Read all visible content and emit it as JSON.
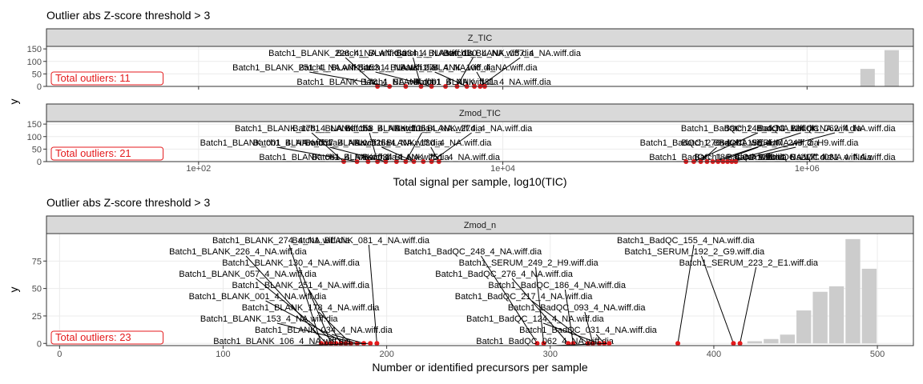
{
  "colors": {
    "panel_bg": "#ffffff",
    "grid": "#ebebeb",
    "strip_bg": "#d9d9d9",
    "bar": "#cccccc",
    "outlier": "#e41a1c",
    "label_line": "#000000",
    "border": "#333333"
  },
  "chart_data": [
    {
      "type": "bar",
      "title": "Outlier abs Z-score threshold > 3",
      "xlabel": "Total signal per sample, log10(TIC)",
      "ylabel": "y",
      "x_scale": "log10",
      "xlim": [
        10,
        5000000
      ],
      "x_ticks": [
        "1e+02",
        "1e+04",
        "1e+06"
      ],
      "x_tick_values": [
        100,
        10000,
        1000000
      ],
      "panels": [
        {
          "strip": "Z_TIC",
          "ylim": [
            0,
            160
          ],
          "y_ticks": [
            0,
            50,
            100,
            150
          ],
          "total_outliers_label": "Total outliers: 11",
          "bars": [
            {
              "x": 2500000,
              "value": 70
            },
            {
              "x": 3600000,
              "value": 145
            }
          ],
          "outliers": [
            {
              "x": 1500,
              "label": "Batch1_BLANK_226_4_NA.wiff.dia"
            },
            {
              "x": 1800,
              "label": "Batch1_BLANK_251_4_NA.wiff.dia"
            },
            {
              "x": 2300,
              "label": "Batch1_BLANK_178_4_NA.wiff.dia"
            },
            {
              "x": 2900,
              "label": "Batch1_BLANK_034_4_NA.wiff.dia"
            },
            {
              "x": 3400,
              "label": "Batch1_BLANK_153_4_NA.wiff.dia"
            },
            {
              "x": 4200,
              "label": "Batch1_BLANK_001_4_NA.wiff.dia"
            },
            {
              "x": 5000,
              "label": "Batch1_BLANK_130_4_NA.wiff.dia"
            },
            {
              "x": 5800,
              "label": "Batch1_BLANK_274_4_NA.wiff.dia"
            },
            {
              "x": 6500,
              "label": "Batch1_BLANK_081_4_NA.wiff.dia"
            },
            {
              "x": 7100,
              "label": "Batch1_BLANK_057_4_NA.wiff.dia"
            },
            {
              "x": 7600,
              "label": "Batch1_BLANK_106_4_NA.wiff.dia"
            }
          ]
        },
        {
          "strip": "Zmod_TIC",
          "ylim": [
            0,
            160
          ],
          "y_ticks": [
            0,
            50,
            100,
            150
          ],
          "total_outliers_label": "Total outliers: 21",
          "bars": [],
          "outliers": [
            {
              "x": 900,
              "label": "Batch1_BLANK_178_4_NA.wiff.dia"
            },
            {
              "x": 1100,
              "label": "Batch1_BLANK_001_4_NA.wiff.dia"
            },
            {
              "x": 1300,
              "label": "Batch1_BLANK_081_4_NA.wiff.dia"
            },
            {
              "x": 1500,
              "label": "Batch1_BLANK_153_4_NA.wiff.dia"
            },
            {
              "x": 1700,
              "label": "Batch1_BLANK_057_4_NA.wiff.dia"
            },
            {
              "x": 2000,
              "label": "Batch1_BLANK_034_4_NA.wiff.dia"
            },
            {
              "x": 2300,
              "label": "Batch1_BLANK_106_4_NA.wiff.dia"
            },
            {
              "x": 2600,
              "label": "Batch1_BLANK_226_4_NA.wiff.dia"
            },
            {
              "x": 3000,
              "label": "Batch1_BLANK_251_4_NA.wiff.dia"
            },
            {
              "x": 3400,
              "label": "Batch1_BLANK_274_4_NA.wiff.dia"
            },
            {
              "x": 3800,
              "label": "Batch1_BLANK_130_4_NA.wiff.dia"
            },
            {
              "x": 160000,
              "label": "Batch1_BadQC_186_4_NA.wiff.dia"
            },
            {
              "x": 180000,
              "label": "Batch1_BadQC_248_4_NA.wiff.dia"
            },
            {
              "x": 200000,
              "label": "Batch1_BadQC_276_4_NA.wiff.dia"
            },
            {
              "x": 220000,
              "label": "Batch1_BadQC_093_4_NA.wiff.dia"
            },
            {
              "x": 240000,
              "label": "Batch1_BadQC_124_4_NA.wiff.dia"
            },
            {
              "x": 260000,
              "label": "Batch1_BadQC_155_4_NA.wiff.dia"
            },
            {
              "x": 280000,
              "label": "Batch1_BadQC_217_4_NA.wiff.dia"
            },
            {
              "x": 300000,
              "label": "Batch1_BadQC_062_4_NA.wiff.dia"
            },
            {
              "x": 320000,
              "label": "Batch1_SERUM_249_2_H9.wiff.dia"
            },
            {
              "x": 340000,
              "label": "Batch1_BadQC_031_4_NA.wiff.dia"
            }
          ]
        }
      ]
    },
    {
      "type": "bar",
      "title": "Outlier abs Z-score threshold > 3",
      "xlabel": "Number or identified precursors per sample",
      "ylabel": "y",
      "x_scale": "linear",
      "xlim": [
        -8,
        522
      ],
      "x_ticks": [
        0,
        100,
        200,
        300,
        400,
        500
      ],
      "panels": [
        {
          "strip": "Zmod_n",
          "ylim": [
            -2,
            100
          ],
          "y_ticks": [
            0,
            25,
            50,
            75
          ],
          "total_outliers_label": "Total outliers: 23",
          "bars": [
            {
              "x": 425,
              "value": 2
            },
            {
              "x": 435,
              "value": 4
            },
            {
              "x": 445,
              "value": 8
            },
            {
              "x": 455,
              "value": 30
            },
            {
              "x": 465,
              "value": 47
            },
            {
              "x": 475,
              "value": 52
            },
            {
              "x": 485,
              "value": 95
            },
            {
              "x": 495,
              "value": 68
            }
          ],
          "outliers": [
            {
              "x": 160,
              "label": "Batch1_BLANK_274_4_NA.wiff.dia"
            },
            {
              "x": 163,
              "label": "Batch1_BLANK_226_4_NA.wiff.dia"
            },
            {
              "x": 166,
              "label": "Batch1_BLANK_130_4_NA.wiff.dia"
            },
            {
              "x": 169,
              "label": "Batch1_BLANK_057_4_NA.wiff.dia"
            },
            {
              "x": 172,
              "label": "Batch1_BLANK_251_4_NA.wiff.dia"
            },
            {
              "x": 175,
              "label": "Batch1_BLANK_001_4_NA.wiff.dia"
            },
            {
              "x": 178,
              "label": "Batch1_BLANK_178_4_NA.wiff.dia"
            },
            {
              "x": 182,
              "label": "Batch1_BLANK_153_4_NA.wiff.dia"
            },
            {
              "x": 186,
              "label": "Batch1_BLANK_034_4_NA.wiff.dia"
            },
            {
              "x": 190,
              "label": "Batch1_BLANK_106_4_NA.wiff.dia"
            },
            {
              "x": 194,
              "label": "Batch1_BLANK_081_4_NA.wiff.dia"
            },
            {
              "x": 292,
              "label": "Batch1_BadQC_248_4_NA.wiff.dia"
            },
            {
              "x": 296,
              "label": "Batch1_SERUM_249_2_H9.wiff.dia"
            },
            {
              "x": 311,
              "label": "Batch1_BadQC_276_4_NA.wiff.dia"
            },
            {
              "x": 314,
              "label": "Batch1_BadQC_186_4_NA.wiff.dia"
            },
            {
              "x": 323,
              "label": "Batch1_BadQC_217_4_NA.wiff.dia"
            },
            {
              "x": 326,
              "label": "Batch1_BadQC_093_4_NA.wiff.dia"
            },
            {
              "x": 330,
              "label": "Batch1_BadQC_124_4_NA.wiff.dia"
            },
            {
              "x": 333,
              "label": "Batch1_BadQC_031_4_NA.wiff.dia"
            },
            {
              "x": 336,
              "label": "Batch1_BadQC_062_4_NA.wiff.dia"
            },
            {
              "x": 378,
              "label": "Batch1_BadQC_155_4_NA.wiff.dia"
            },
            {
              "x": 412,
              "label": "Batch1_SERUM_192_2_G9.wiff.dia"
            },
            {
              "x": 416,
              "label": "Batch1_SERUM_223_2_E1.wiff.dia"
            }
          ]
        }
      ]
    }
  ]
}
